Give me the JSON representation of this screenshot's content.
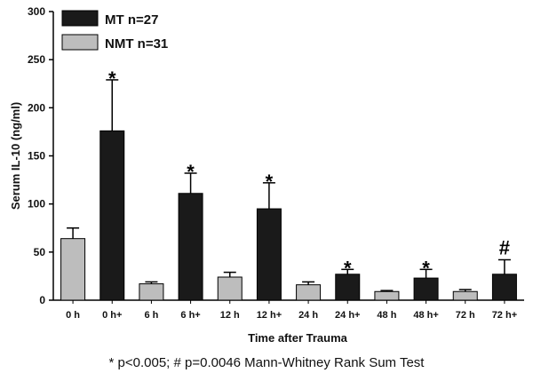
{
  "chart_data": {
    "type": "bar",
    "categories": [
      "0 h",
      "0 h+",
      "6 h",
      "6 h+",
      "12 h",
      "12 h+",
      "24 h",
      "24 h+",
      "48 h",
      "48 h+",
      "72 h",
      "72 h+"
    ],
    "values": [
      64,
      176,
      17,
      111,
      24,
      95,
      16,
      27,
      9,
      23,
      9,
      27
    ],
    "errors": [
      11,
      53,
      2,
      21,
      5,
      27,
      3,
      5,
      1,
      9,
      2,
      15
    ],
    "groups": [
      "NMT",
      "MT",
      "NMT",
      "MT",
      "NMT",
      "MT",
      "NMT",
      "MT",
      "NMT",
      "MT",
      "NMT",
      "MT"
    ],
    "markers": [
      "",
      "*",
      "",
      "*",
      "",
      "*",
      "",
      "*",
      "",
      "*",
      "",
      "#"
    ],
    "series": [
      {
        "name": "MT    n=27",
        "color": "#1a1a1a"
      },
      {
        "name": "NMT n=31",
        "color": "#bdbdbd"
      }
    ],
    "xlabel": "Time after Trauma",
    "ylabel": "Serum IL-10 (ng/ml)",
    "ylim": [
      0,
      300
    ],
    "yticks": [
      0,
      50,
      100,
      150,
      200,
      250,
      300
    ],
    "legend": "top-left",
    "grid": false
  },
  "footnote": "* p<0.005; # p=0.0046 Mann-Whitney Rank Sum Test"
}
